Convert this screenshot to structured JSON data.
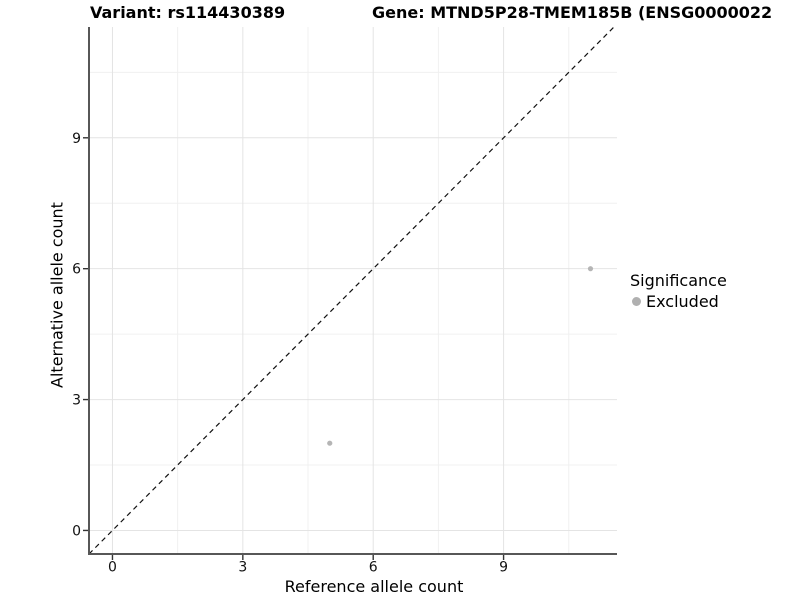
{
  "titles": {
    "variant": "Variant: rs114430389",
    "gene": "Gene: MTND5P28-TMEM185B (ENSG0000022"
  },
  "axes": {
    "x": {
      "label": "Reference allele count",
      "ticks": [
        "0",
        "3",
        "6",
        "9"
      ]
    },
    "y": {
      "label": "Alternative allele count",
      "ticks": [
        "0",
        "3",
        "6",
        "9"
      ]
    }
  },
  "legend": {
    "title": "Significance",
    "items": [
      {
        "label": "Excluded",
        "color": "#b0b0b0",
        "marker": "circle"
      }
    ]
  },
  "chart_data": {
    "type": "scatter",
    "title_left": "Variant: rs114430389",
    "title_right": "Gene: MTND5P28-TMEM185B (ENSG0000022",
    "xlabel": "Reference allele count",
    "ylabel": "Alternative allele count",
    "xlim": [
      -0.54,
      11.61
    ],
    "ylim": [
      -0.54,
      11.54
    ],
    "x_major_ticks": [
      0,
      3,
      6,
      9
    ],
    "y_major_ticks": [
      0,
      3,
      6,
      9
    ],
    "x_minor_gridlines": [
      1.5,
      4.5,
      7.5,
      10.5
    ],
    "y_minor_gridlines": [
      1.5,
      4.5,
      7.5,
      10.5
    ],
    "grid": true,
    "legend_position": "right",
    "legend_title": "Significance",
    "series": [
      {
        "name": "Excluded",
        "color": "#b5b5b5",
        "point_radius": 2.6,
        "points": [
          {
            "x": 5,
            "y": 2
          },
          {
            "x": 11,
            "y": 6
          }
        ]
      }
    ],
    "reference_line": {
      "type": "identity",
      "slope": 1,
      "intercept": 0,
      "style": "dashed",
      "color": "#111111"
    },
    "colors": {
      "major_grid": "#e4e4e4",
      "minor_grid": "#f0f0f0",
      "axis_line": "#575757",
      "tick_mark": "#333333",
      "tick_label": "#111111"
    }
  }
}
